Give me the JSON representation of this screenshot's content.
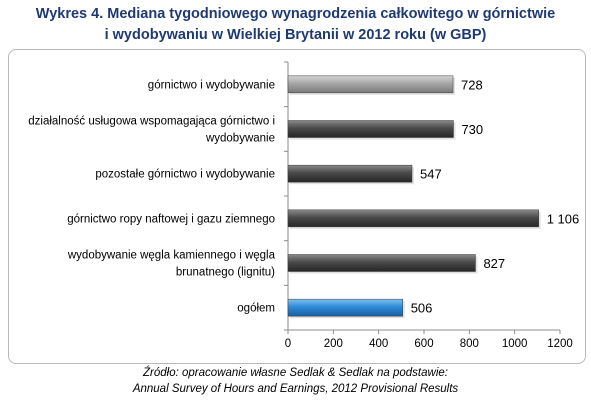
{
  "title_line1": "Wykres 4. Mediana tygodniowego wynagrodzenia całkowitego w górnictwie",
  "title_line2": "i wydobywaniu w Wielkiej Brytanii w 2012 roku (w GBP)",
  "source_line1": "Źródło: opracowanie własne Sedlak & Sedlak na podstawie:",
  "source_line2": "Annual Survey of Hours and Earnings, 2012 Provisional Results",
  "colors": {
    "bar_light": "#a6a6a6",
    "bar_dark": "#4a4a4a",
    "bar_blue": "#2e8bd6",
    "title": "#1f3a73"
  },
  "chart_data": {
    "type": "bar",
    "orientation": "horizontal",
    "title": "Wykres 4. Mediana tygodniowego wynagrodzenia całkowitego w górnictwie i wydobywaniu w Wielkiej Brytanii w 2012 roku (w GBP)",
    "categories": [
      [
        "górnictwo i wydobywanie"
      ],
      [
        "działalność usługowa wspomagająca górnictwo i",
        "wydobywanie"
      ],
      [
        "pozostałe górnictwo i wydobywanie"
      ],
      [
        "górnictwo ropy naftowej i gazu ziemnego"
      ],
      [
        "wydobywanie węgla kamiennego i węgla",
        "brunatnego (lignitu)"
      ],
      [
        "ogółem"
      ]
    ],
    "values": [
      728,
      730,
      547,
      1106,
      827,
      506
    ],
    "value_labels": [
      "728",
      "730",
      "547",
      "1 106",
      "827",
      "506"
    ],
    "bar_colors": [
      "light",
      "dark",
      "dark",
      "dark",
      "dark",
      "blue"
    ],
    "xlim": [
      0,
      1200
    ],
    "xticks": [
      0,
      200,
      400,
      600,
      800,
      1000,
      1200
    ],
    "xlabel": "",
    "ylabel": "",
    "grid": false,
    "legend": "none"
  }
}
